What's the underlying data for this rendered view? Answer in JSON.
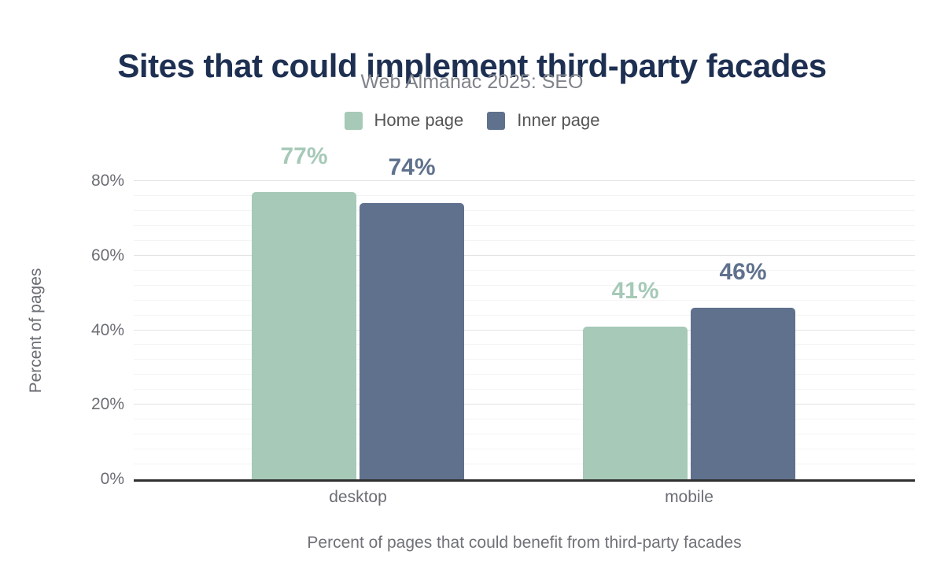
{
  "chart_data": {
    "type": "bar",
    "title": "Sites that could implement third-party facades",
    "subtitle": "Web Almanac 2025: SEO",
    "categories": [
      "desktop",
      "mobile"
    ],
    "series": [
      {
        "name": "Home page",
        "color": "#a6c9b8",
        "values": [
          77,
          41
        ],
        "labels": [
          "77%",
          "41%"
        ]
      },
      {
        "name": "Inner page",
        "color": "#5f718d",
        "values": [
          74,
          46
        ],
        "labels": [
          "74%",
          "46%"
        ]
      }
    ],
    "ylabel": "Percent of pages",
    "xlabel": "Percent of pages that could benefit from third-party facades",
    "ylim": [
      0,
      80
    ],
    "yticks": [
      {
        "label": "0%",
        "value": 0
      },
      {
        "label": "20%",
        "value": 20
      },
      {
        "label": "40%",
        "value": 40
      },
      {
        "label": "60%",
        "value": 60
      },
      {
        "label": "80%",
        "value": 80
      }
    ],
    "grid": "horizontal",
    "minor_grid_step_percent": 4,
    "legend_position": "top"
  },
  "colors": {
    "title": "#1e3052",
    "subtitle": "#80838a",
    "legend_text": "#555555",
    "axis_text": "#6b6e74",
    "caption_text": "#6f7277",
    "grid_major": "#e3e3e3",
    "grid_minor": "#f4f4f4",
    "axis_line": "#303030",
    "home_page_series": "#a6c9b8",
    "inner_page_series": "#5f718d"
  }
}
